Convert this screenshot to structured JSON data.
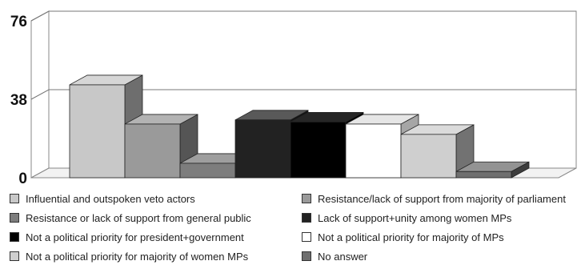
{
  "chart_data": {
    "type": "bar",
    "style": "3d-bar",
    "yticks": [
      0,
      38,
      76
    ],
    "ylim": [
      0,
      76
    ],
    "grid": true,
    "legend_position": "bottom",
    "series": [
      {
        "name": "Influential and outspoken veto actors",
        "value": 45,
        "color": "#c8c8c8"
      },
      {
        "name": "Resistance/lack of support from majority of parliament",
        "value": 26,
        "color": "#9a9a9a"
      },
      {
        "name": "Resistance or lack of support from general public",
        "value": 7,
        "color": "#7d7d7d"
      },
      {
        "name": "Lack of support+unity among women MPs",
        "value": 28,
        "color": "#222222"
      },
      {
        "name": "Not a political priority for president+government",
        "value": 27,
        "color": "#000000"
      },
      {
        "name": "Not a political priority for majority of MPs",
        "value": 26,
        "color": "#ffffff"
      },
      {
        "name": "Not a political priority for majority of women MPs",
        "value": 21,
        "color": "#cfcfcf"
      },
      {
        "name": "No answer",
        "value": 3,
        "color": "#6f6f6f"
      }
    ]
  }
}
